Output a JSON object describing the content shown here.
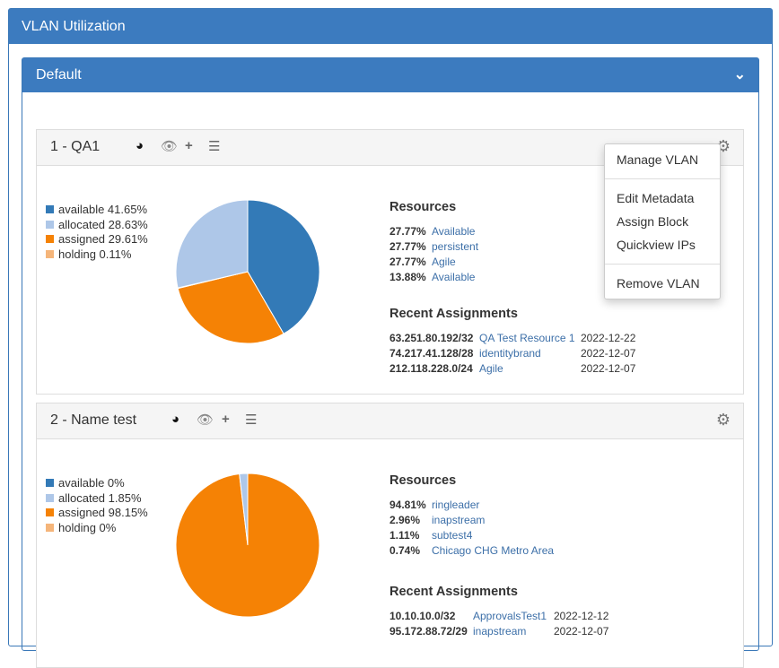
{
  "title": "VLAN Utilization",
  "group": "Default",
  "colors": {
    "available": "#337ab7",
    "allocated": "#aec7e8",
    "assigned": "#f58205",
    "holding": "#f5b57a"
  },
  "vlans": [
    {
      "name": "1 - QA1",
      "legend": [
        {
          "label": "available 41.65%",
          "key": "available",
          "value": 41.65
        },
        {
          "label": "allocated 28.63%",
          "key": "allocated",
          "value": 28.63
        },
        {
          "label": "assigned 29.61%",
          "key": "assigned",
          "value": 29.61
        },
        {
          "label": "holding 0.11%",
          "key": "holding",
          "value": 0.11
        }
      ],
      "resources_title": "Resources",
      "resources": [
        {
          "pct": "27.77%",
          "name": "Available"
        },
        {
          "pct": "27.77%",
          "name": "persistent"
        },
        {
          "pct": "27.77%",
          "name": "Agile"
        },
        {
          "pct": "13.88%",
          "name": "Available"
        }
      ],
      "assign_title": "Recent Assignments",
      "assignments": [
        {
          "block": "63.251.80.192/32",
          "name": "QA Test Resource 1",
          "date": "2022-12-22"
        },
        {
          "block": "74.217.41.128/28",
          "name": "identitybrand",
          "date": "2022-12-07"
        },
        {
          "block": "212.118.228.0/24",
          "name": "Agile",
          "date": "2022-12-07"
        }
      ]
    },
    {
      "name": "2 - Name test",
      "legend": [
        {
          "label": "available 0%",
          "key": "available",
          "value": 0
        },
        {
          "label": "allocated 1.85%",
          "key": "allocated",
          "value": 1.85
        },
        {
          "label": "assigned 98.15%",
          "key": "assigned",
          "value": 98.15
        },
        {
          "label": "holding 0%",
          "key": "holding",
          "value": 0
        }
      ],
      "resources_title": "Resources",
      "resources": [
        {
          "pct": "94.81%",
          "name": "ringleader"
        },
        {
          "pct": "2.96%",
          "name": "inapstream"
        },
        {
          "pct": "1.11%",
          "name": "subtest4"
        },
        {
          "pct": "0.74%",
          "name": "Chicago CHG Metro Area"
        }
      ],
      "assign_title": "Recent Assignments",
      "assignments": [
        {
          "block": "10.10.10.0/32",
          "name": "ApprovalsTest1",
          "date": "2022-12-12"
        },
        {
          "block": "95.172.88.72/29",
          "name": "inapstream",
          "date": "2022-12-07"
        }
      ]
    }
  ],
  "menu": [
    "Manage VLAN",
    "Edit Metadata",
    "Assign Block",
    "Quickview IPs",
    "Remove VLAN"
  ]
}
